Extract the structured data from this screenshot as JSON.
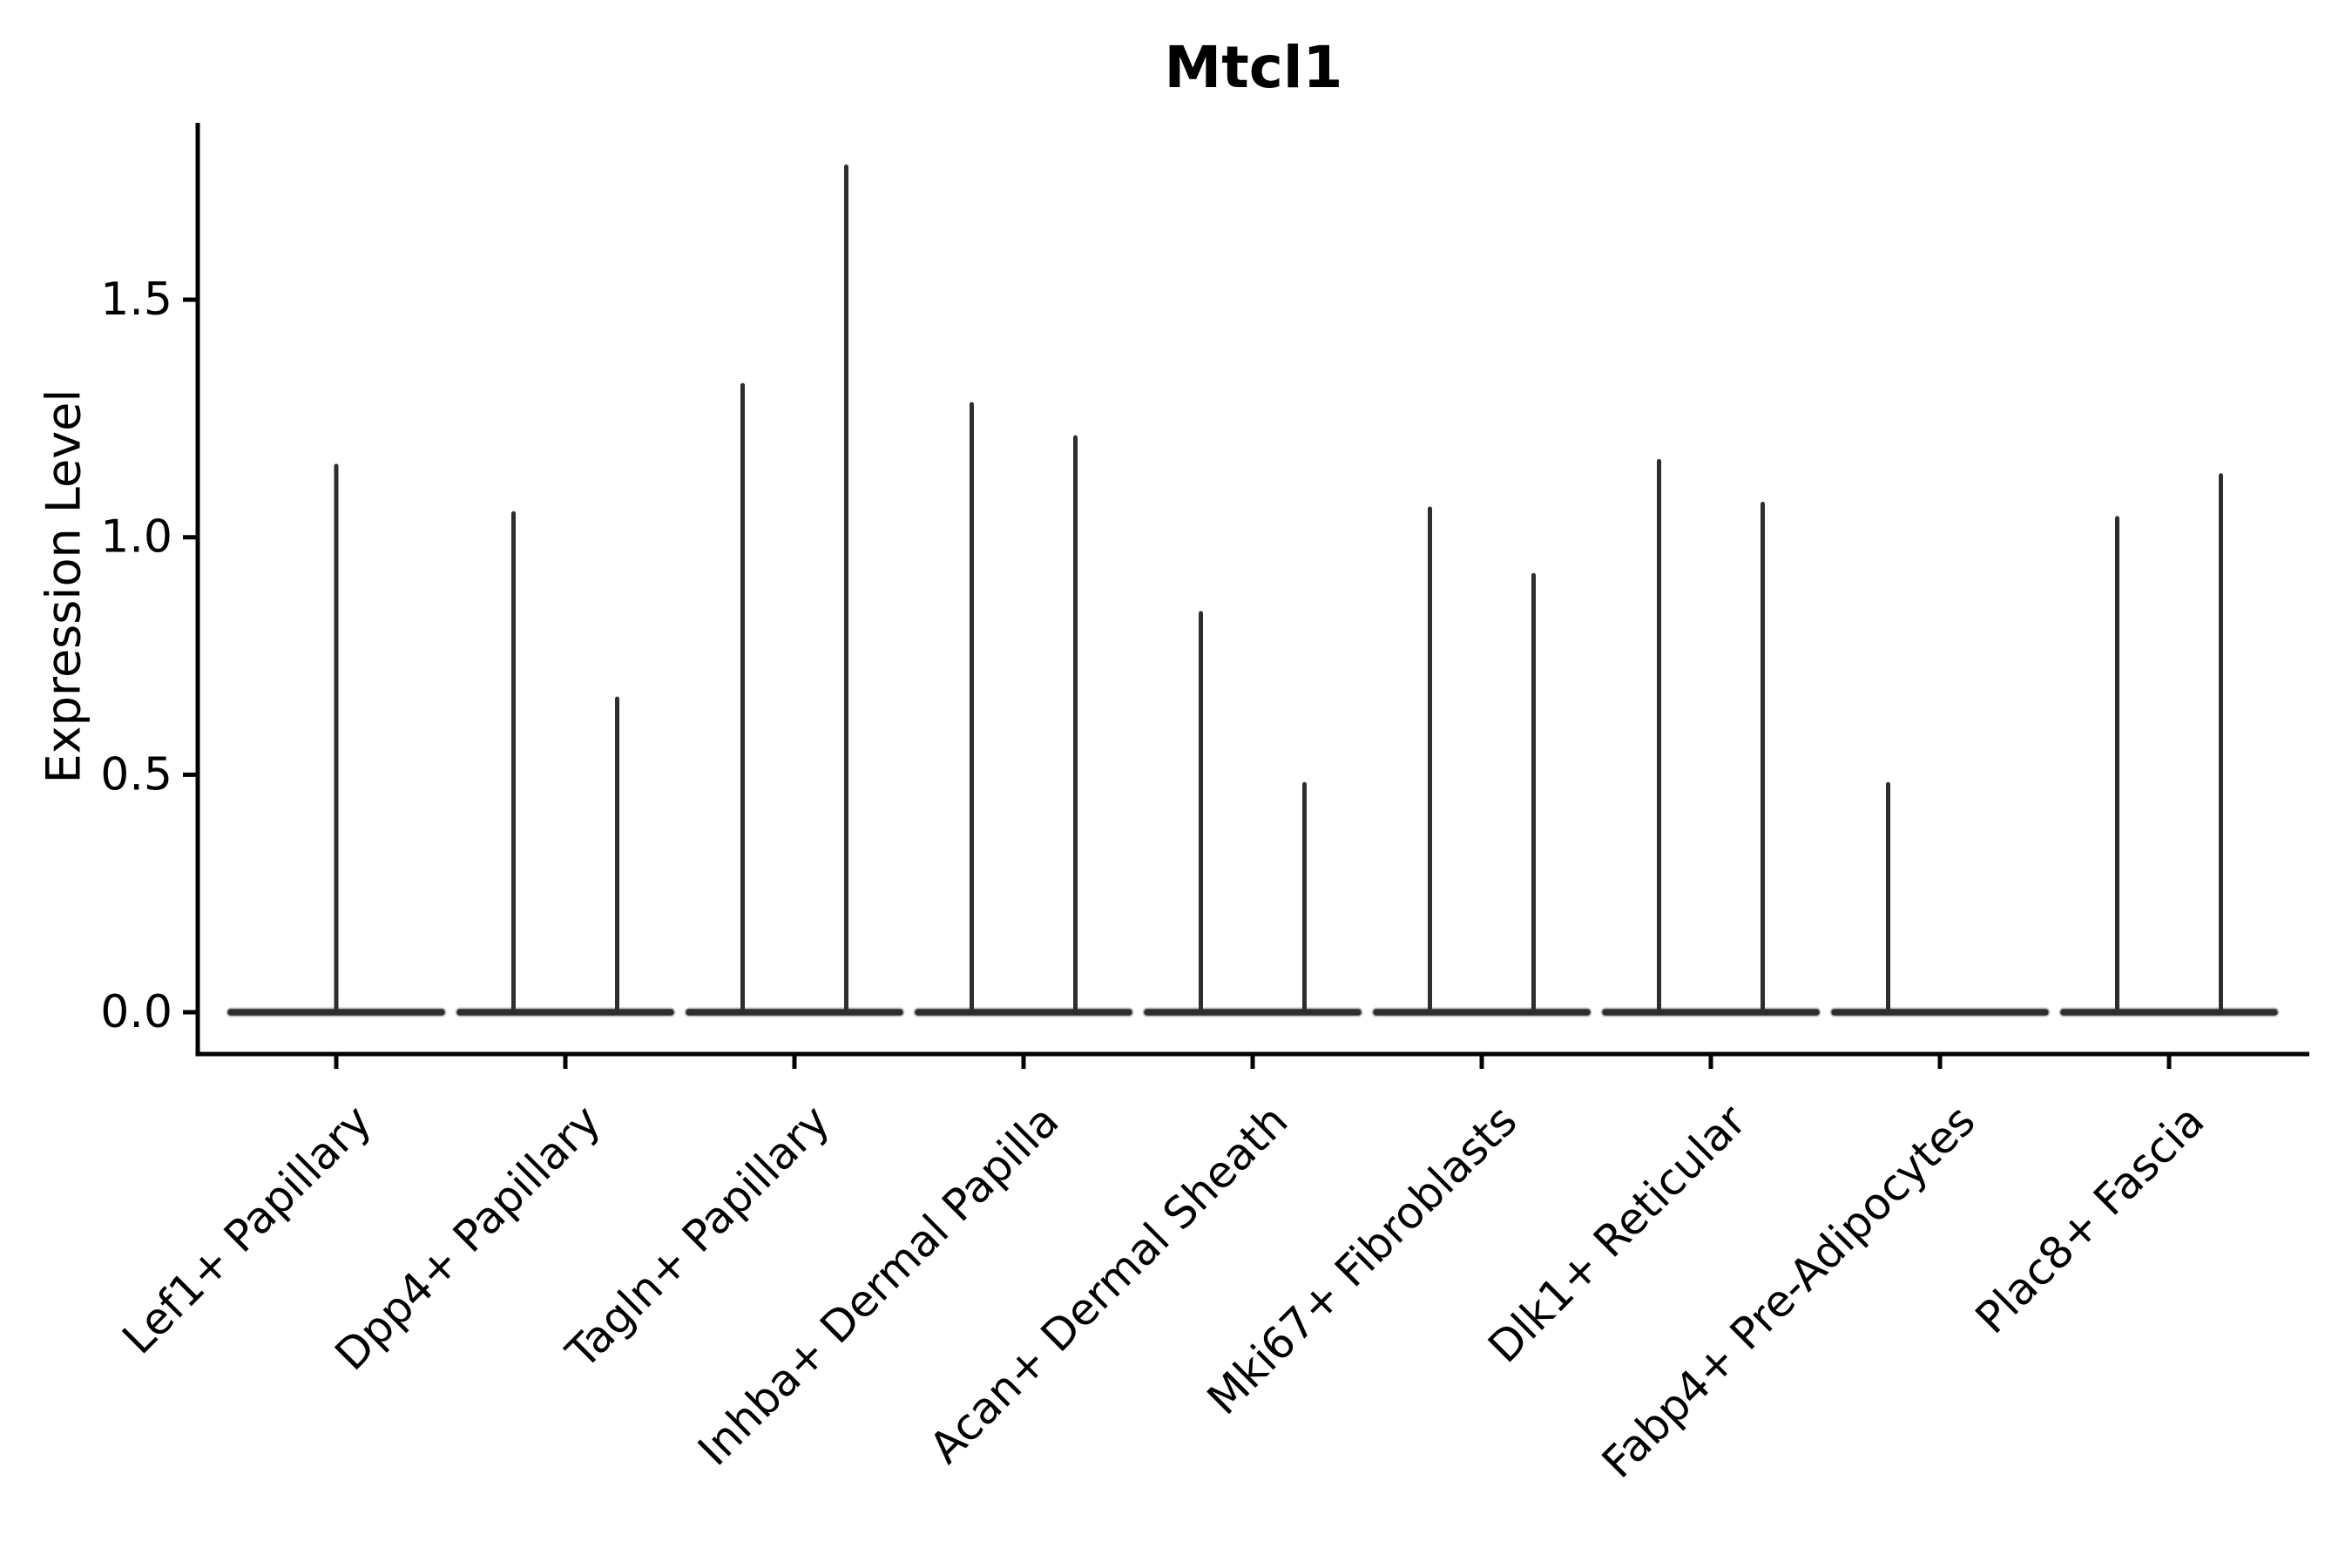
{
  "title": "Mtcl1",
  "chart_data": {
    "type": "violin",
    "title": "Mtcl1",
    "xlabel": "",
    "ylabel": "Expression Level",
    "ytick_labels": [
      "0.0",
      "0.5",
      "1.0",
      "1.5"
    ],
    "ytick_values": [
      0.0,
      0.5,
      1.0,
      1.5
    ],
    "ylim": [
      -0.09,
      1.87
    ],
    "grid": false,
    "legend": "none",
    "description": "Violin plot of Mtcl1 expression per fibroblast cluster; violins collapse to a baseline at 0 with thin density spikes whose tips reach the listed peak expression values. Categories with two spikes contain two side-by-side violins (left/right); 'center' means a single full-width violin.",
    "categories": [
      "Lef1+ Papillary",
      "Dpp4+ Papillary",
      "Tagln+ Papillary",
      "Inhba+ Dermal Papilla",
      "Acan+ Dermal Sheath",
      "Mki67+ Fibroblasts",
      "Dlk1+ Reticular",
      "Fabp4+ Pre-Adipocytes",
      "Plac8+ Fascia"
    ],
    "groups": [
      {
        "category": "Lef1+ Papillary",
        "violins": [
          {
            "position": "center",
            "peak": 1.15
          }
        ]
      },
      {
        "category": "Dpp4+ Papillary",
        "violins": [
          {
            "position": "left",
            "peak": 1.05
          },
          {
            "position": "right",
            "peak": 0.66
          }
        ]
      },
      {
        "category": "Tagln+ Papillary",
        "violins": [
          {
            "position": "left",
            "peak": 1.32
          },
          {
            "position": "right",
            "peak": 1.78
          }
        ]
      },
      {
        "category": "Inhba+ Dermal Papilla",
        "violins": [
          {
            "position": "left",
            "peak": 1.28
          },
          {
            "position": "right",
            "peak": 1.21
          }
        ]
      },
      {
        "category": "Acan+ Dermal Sheath",
        "violins": [
          {
            "position": "left",
            "peak": 0.84
          },
          {
            "position": "right",
            "peak": 0.48
          }
        ]
      },
      {
        "category": "Mki67+ Fibroblasts",
        "violins": [
          {
            "position": "left",
            "peak": 1.06
          },
          {
            "position": "right",
            "peak": 0.92
          }
        ]
      },
      {
        "category": "Dlk1+ Reticular",
        "violins": [
          {
            "position": "left",
            "peak": 1.16
          },
          {
            "position": "right",
            "peak": 1.07
          }
        ]
      },
      {
        "category": "Fabp4+ Pre-Adipocytes",
        "violins": [
          {
            "position": "left",
            "peak": 0.48
          },
          {
            "position": "right",
            "peak": 0.0
          }
        ]
      },
      {
        "category": "Plac8+ Fascia",
        "violins": [
          {
            "position": "left",
            "peak": 1.04
          },
          {
            "position": "right",
            "peak": 1.13
          }
        ]
      }
    ],
    "colors": {
      "background": "#ffffff",
      "violin_stroke": "#2e2e2e",
      "violin_halo": "#a3a3a3",
      "axis": "#000000",
      "text": "#000000"
    }
  }
}
